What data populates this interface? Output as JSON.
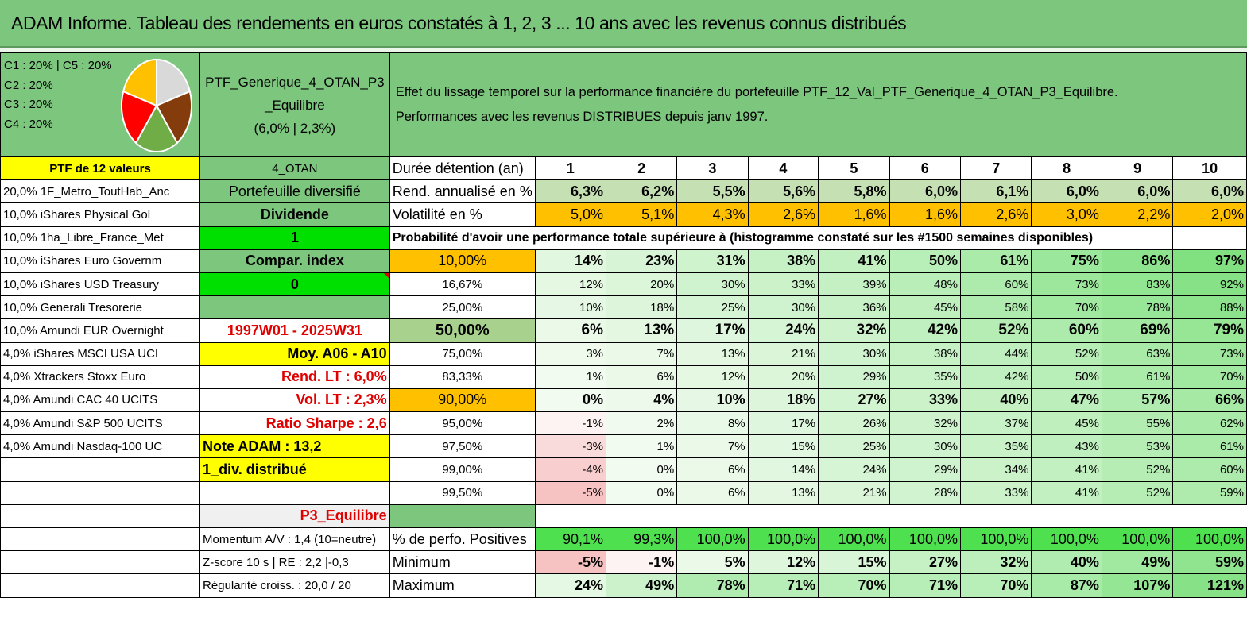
{
  "title": "ADAM Informe. Tableau des rendements en euros constatés à 1, 2, 3 ... 10 ans avec les revenus connus distribués",
  "allocation": [
    "C1 : 20% | C5 : 20%",
    "C2 : 20%",
    "C3 : 20%",
    "C4 : 20%"
  ],
  "pie_slices": [
    {
      "label": "C1",
      "value": 20,
      "color": "#d9d9d9"
    },
    {
      "label": "C2",
      "value": 20,
      "color": "#843c0c"
    },
    {
      "label": "C3",
      "value": 20,
      "color": "#70ad47"
    },
    {
      "label": "C4",
      "value": 20,
      "color": "#ff0000"
    },
    {
      "label": "C5",
      "value": 20,
      "color": "#ffc000"
    }
  ],
  "portfolio": {
    "name_lines": [
      "PTF_Generique_4_OTAN_P3",
      "_Equilibre",
      "(6,0% | 2,3%)"
    ],
    "effect_line1": "Effet du lissage temporel sur la performance financière du portefeuille PTF_12_Val_PTF_Generique_4_OTAN_P3_Equilibre.",
    "effect_line2": "Performances avec les revenus DISTRIBUES depuis janv 1997."
  },
  "holdings": [
    "PTF de 12 valeurs",
    "20,0% 1F_Metro_ToutHab_Anc",
    "10,0% iShares Physical Gol",
    "10,0% 1ha_Libre_France_Met",
    "10,0% iShares Euro Governm",
    "10,0% iShares USD Treasury",
    "10,0% Generali Tresorerie",
    "10,0% Amundi EUR Overnight",
    "4,0% iShares MSCI USA UCI",
    "4,0% Xtrackers Stoxx Euro",
    "4,0% Amundi CAC 40 UCITS",
    "4,0% Amundi S&P 500 UCITS",
    "4,0% Amundi Nasdaq-100 UC"
  ],
  "info": [
    "4_OTAN",
    "Portefeuille diversifié",
    "Dividende",
    "1",
    "Compar. index",
    "0",
    "",
    "1997W01 - 2025W31",
    "Moy. A06 - A10",
    "Rend. LT : 6,0%",
    "Vol. LT : 2,3%",
    "Ratio Sharpe : 2,6",
    "Note ADAM : 13,2",
    "1_div. distribué",
    "",
    "P3_Equilibre",
    "Momentum A/V : 1,4 (10=neutre)",
    "Z-score 10 s | RE : 2,2 |-0,3",
    "Régularité croiss. : 20,0 / 20"
  ],
  "table": {
    "duration_label": "Durée détention (an)",
    "years": [
      "1",
      "2",
      "3",
      "4",
      "5",
      "6",
      "7",
      "8",
      "9",
      "10"
    ],
    "rend_label": "Rend. annualisé en %",
    "rend": [
      "6,3%",
      "6,2%",
      "5,5%",
      "5,6%",
      "5,8%",
      "6,0%",
      "6,1%",
      "6,0%",
      "6,0%",
      "6,0%"
    ],
    "vol_label": "Volatilité en %",
    "vol": [
      "5,0%",
      "5,1%",
      "4,3%",
      "2,6%",
      "1,6%",
      "1,6%",
      "2,6%",
      "3,0%",
      "2,2%",
      "2,0%"
    ],
    "prob_title": "Probabilité d'avoir une performance totale supérieure à (histogramme constaté sur les #1500 semaines disponibles)",
    "prob_rows": [
      {
        "label": "10,00%",
        "values": [
          "14%",
          "23%",
          "31%",
          "38%",
          "41%",
          "50%",
          "61%",
          "75%",
          "86%",
          "97%"
        ]
      },
      {
        "label": "16,67%",
        "values": [
          "12%",
          "20%",
          "30%",
          "33%",
          "39%",
          "48%",
          "60%",
          "73%",
          "83%",
          "92%"
        ]
      },
      {
        "label": "25,00%",
        "values": [
          "10%",
          "18%",
          "25%",
          "30%",
          "36%",
          "45%",
          "58%",
          "70%",
          "78%",
          "88%"
        ]
      },
      {
        "label": "50,00%",
        "values": [
          "6%",
          "13%",
          "17%",
          "24%",
          "32%",
          "42%",
          "52%",
          "60%",
          "69%",
          "79%"
        ]
      },
      {
        "label": "75,00%",
        "values": [
          "3%",
          "7%",
          "13%",
          "21%",
          "30%",
          "38%",
          "44%",
          "52%",
          "63%",
          "73%"
        ]
      },
      {
        "label": "83,33%",
        "values": [
          "1%",
          "6%",
          "12%",
          "20%",
          "29%",
          "35%",
          "42%",
          "50%",
          "61%",
          "70%"
        ]
      },
      {
        "label": "90,00%",
        "values": [
          "0%",
          "4%",
          "10%",
          "18%",
          "27%",
          "33%",
          "40%",
          "47%",
          "57%",
          "66%"
        ]
      },
      {
        "label": "95,00%",
        "values": [
          "-1%",
          "2%",
          "8%",
          "17%",
          "26%",
          "32%",
          "37%",
          "45%",
          "55%",
          "62%"
        ]
      },
      {
        "label": "97,50%",
        "values": [
          "-3%",
          "1%",
          "7%",
          "15%",
          "25%",
          "30%",
          "35%",
          "43%",
          "53%",
          "61%"
        ]
      },
      {
        "label": "99,00%",
        "values": [
          "-4%",
          "0%",
          "6%",
          "14%",
          "24%",
          "29%",
          "34%",
          "41%",
          "52%",
          "60%"
        ]
      },
      {
        "label": "99,50%",
        "values": [
          "-5%",
          "0%",
          "6%",
          "13%",
          "21%",
          "28%",
          "33%",
          "41%",
          "52%",
          "59%"
        ]
      }
    ],
    "pos_label": "% de perfo. Positives",
    "pos": [
      "90,1%",
      "99,3%",
      "100,0%",
      "100,0%",
      "100,0%",
      "100,0%",
      "100,0%",
      "100,0%",
      "100,0%",
      "100,0%"
    ],
    "min_label": "Minimum",
    "min": [
      "-5%",
      "-1%",
      "5%",
      "12%",
      "15%",
      "27%",
      "32%",
      "40%",
      "49%",
      "59%"
    ],
    "max_label": "Maximum",
    "max": [
      "24%",
      "49%",
      "78%",
      "71%",
      "70%",
      "71%",
      "70%",
      "87%",
      "107%",
      "121%"
    ]
  }
}
